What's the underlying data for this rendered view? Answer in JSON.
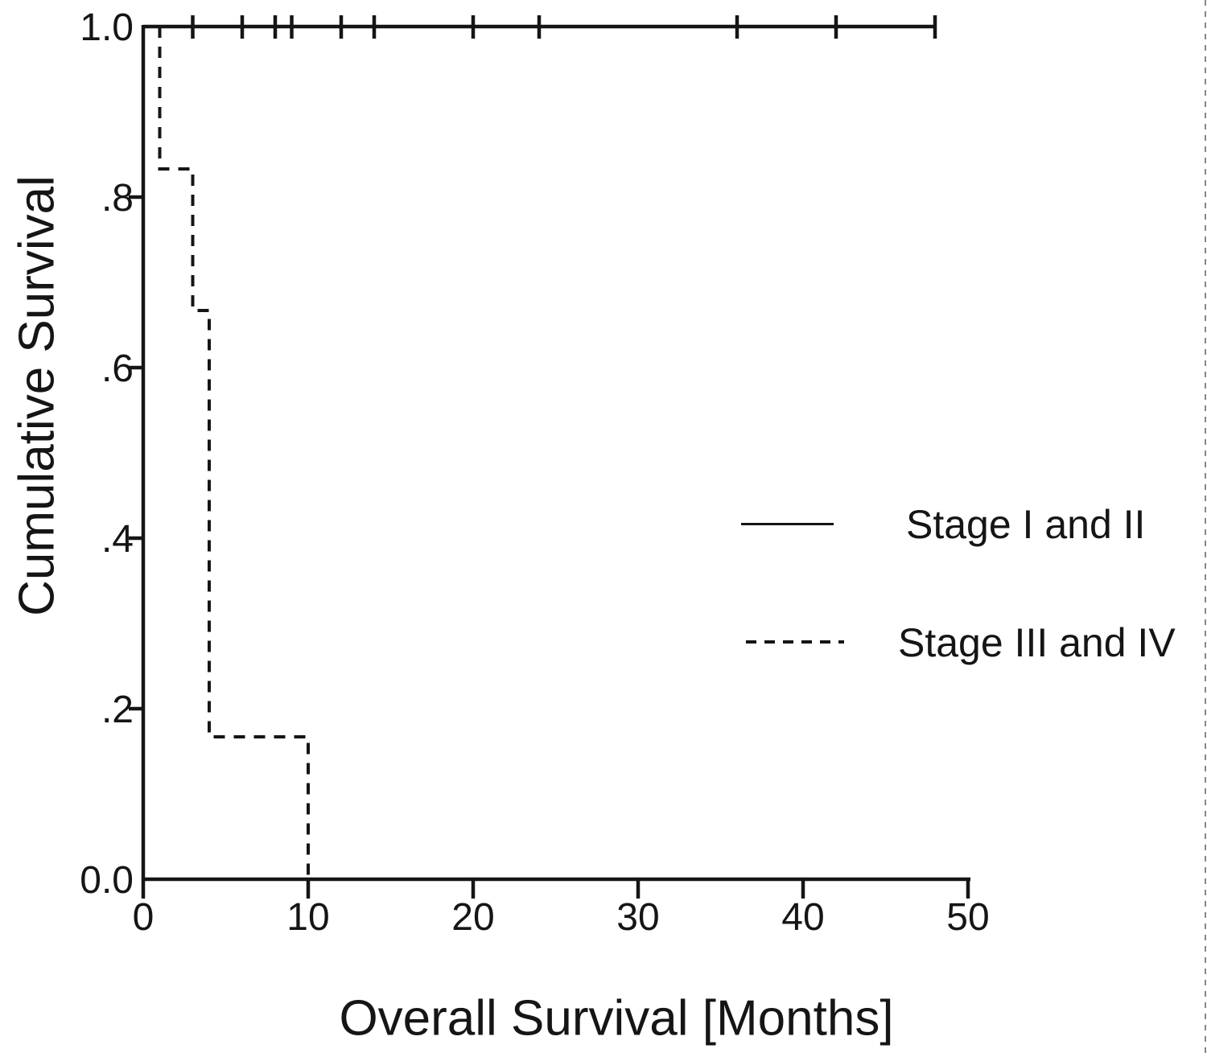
{
  "figure": {
    "background": "#ffffff",
    "ink": "#151515"
  },
  "chart_data": {
    "type": "line",
    "subtype": "kaplan-meier-step",
    "title": "",
    "xlabel": "Overall Survival [Months]",
    "ylabel": "Cumulative Survival",
    "xlim": [
      0,
      50
    ],
    "ylim": [
      0,
      1
    ],
    "x_ticks": [
      0,
      10,
      20,
      30,
      40,
      50
    ],
    "x_tick_labels": [
      "0",
      "10",
      "20",
      "30",
      "40",
      "50"
    ],
    "y_ticks": [
      0,
      0.2,
      0.4,
      0.6,
      0.8,
      1
    ],
    "y_tick_labels": [
      "0.0",
      ".2",
      ".4",
      ".6",
      ".8",
      "1.0"
    ],
    "grid": false,
    "legend_position": "middle-right",
    "series": [
      {
        "name": "Stage I and II",
        "line_style": "solid",
        "color": "#151515",
        "points": [
          [
            0,
            1.0
          ],
          [
            48,
            1.0
          ]
        ],
        "censor_times": [
          3,
          6,
          8,
          9,
          12,
          14,
          20,
          24,
          36,
          42,
          48
        ],
        "censor_level": 1.0
      },
      {
        "name": "Stage III and IV",
        "line_style": "dashed",
        "color": "#151515",
        "points": [
          [
            1,
            1.0
          ],
          [
            1,
            0.833
          ],
          [
            3,
            0.833
          ],
          [
            3,
            0.667
          ],
          [
            4,
            0.667
          ],
          [
            4,
            0.167
          ],
          [
            10,
            0.167
          ],
          [
            10,
            0.0
          ]
        ],
        "censor_times": [],
        "censor_level": null
      }
    ]
  }
}
